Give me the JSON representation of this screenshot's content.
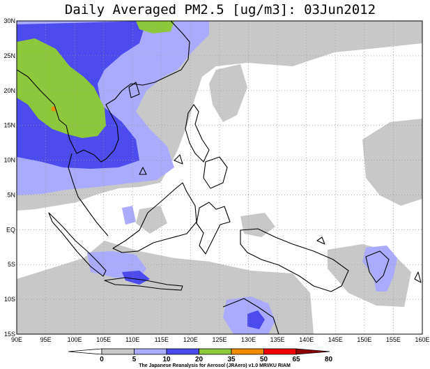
{
  "title": "Daily Averaged PM2.5 [ug/m3]: 03Jun2012",
  "x_axis": {
    "ticks": [
      "90E",
      "95E",
      "100E",
      "105E",
      "110E",
      "115E",
      "120E",
      "125E",
      "130E",
      "135E",
      "140E",
      "145E",
      "150E",
      "155E",
      "160E"
    ]
  },
  "y_axis": {
    "ticks": [
      "30N",
      "25N",
      "20N",
      "15N",
      "10N",
      "5N",
      "EQ",
      "5S",
      "10S",
      "15S"
    ]
  },
  "extent": {
    "lon_min": 90,
    "lon_max": 160,
    "lat_min": -15,
    "lat_max": 30
  },
  "legend": {
    "levels": [
      "0",
      "5",
      "10",
      "20",
      "35",
      "50",
      "65",
      "80"
    ],
    "colors": [
      "#ffffff",
      "#c8c8c8",
      "#aaaaff",
      "#4b4bee",
      "#8cc83c",
      "#f08c00",
      "#f00000",
      "#8c0000"
    ]
  },
  "credit": "The Japanese Reanalysis for Aerosol (JRAero) v1.0 MRI/KU RIAM"
}
